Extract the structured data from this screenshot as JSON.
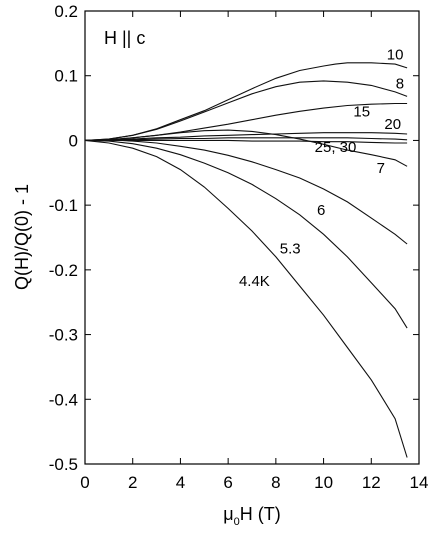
{
  "chart_data": {
    "type": "line",
    "xlabel": "μ₀H (T)",
    "xlabel_parts": {
      "main": "μ",
      "sub": "0",
      "rest": "H (T)"
    },
    "ylabel": "Q(H)/Q(0) - 1",
    "xlim": [
      0,
      14
    ],
    "ylim": [
      -0.5,
      0.2
    ],
    "xticks": [
      0,
      2,
      4,
      6,
      8,
      10,
      12,
      14
    ],
    "yticks": [
      -0.5,
      -0.4,
      -0.3,
      -0.2,
      -0.1,
      0,
      0.1,
      0.2
    ],
    "ytick_labels": [
      "-0.5",
      "-0.4",
      "-0.3",
      "-0.2",
      "-0.1",
      "0",
      "0.1",
      "0.2"
    ],
    "grid": false,
    "field_annotation": "H || c",
    "series": [
      {
        "name": "10",
        "label_x": 13.0,
        "label_y": 0.125,
        "x": [
          0,
          1,
          2,
          3,
          4,
          5,
          6,
          7,
          8,
          9,
          10,
          10.5,
          11,
          12,
          13,
          13.5
        ],
        "y": [
          0,
          0.002,
          0.008,
          0.018,
          0.032,
          0.046,
          0.063,
          0.08,
          0.096,
          0.108,
          0.115,
          0.118,
          0.12,
          0.12,
          0.118,
          0.112
        ]
      },
      {
        "name": "8",
        "label_x": 13.2,
        "label_y": 0.08,
        "x": [
          0,
          1,
          2,
          3,
          4,
          5,
          6,
          7,
          8,
          9,
          10,
          11,
          12,
          13,
          13.5
        ],
        "y": [
          0,
          0.002,
          0.008,
          0.017,
          0.03,
          0.044,
          0.058,
          0.072,
          0.083,
          0.09,
          0.092,
          0.09,
          0.085,
          0.075,
          0.068
        ]
      },
      {
        "name": "15",
        "label_x": 11.6,
        "label_y": 0.037,
        "x": [
          0,
          1,
          2,
          3,
          4,
          5,
          6,
          7,
          8,
          9,
          10,
          11,
          12,
          13,
          13.5
        ],
        "y": [
          0,
          0.001,
          0.004,
          0.008,
          0.013,
          0.019,
          0.025,
          0.032,
          0.039,
          0.045,
          0.05,
          0.054,
          0.056,
          0.057,
          0.057
        ]
      },
      {
        "name": "20",
        "label_x": 12.9,
        "label_y": 0.018,
        "x": [
          0,
          1,
          2,
          3,
          4,
          5,
          6,
          7,
          8,
          9,
          10,
          11,
          12,
          13,
          13.5
        ],
        "y": [
          0,
          0.001,
          0.002,
          0.004,
          0.005,
          0.007,
          0.008,
          0.009,
          0.01,
          0.011,
          0.012,
          0.012,
          0.012,
          0.011,
          0.01
        ]
      },
      {
        "name": "25",
        "x": [
          0,
          1,
          2,
          3,
          4,
          5,
          6,
          7,
          8,
          9,
          10,
          11,
          12,
          13,
          13.5
        ],
        "y": [
          0,
          0,
          0.001,
          0.002,
          0.003,
          0.003,
          0.004,
          0.004,
          0.004,
          0.004,
          0.004,
          0.004,
          0.003,
          0.002,
          0.001
        ]
      },
      {
        "name": "30",
        "label": "25, 30",
        "label_x": 10.5,
        "label_y": -0.018,
        "x": [
          0,
          1,
          2,
          3,
          4,
          5,
          6,
          7,
          8,
          9,
          10,
          11,
          12,
          13,
          13.5
        ],
        "y": [
          0,
          0,
          0,
          0,
          0,
          0,
          0,
          -0.001,
          -0.001,
          -0.001,
          -0.002,
          -0.002,
          -0.003,
          -0.004,
          -0.004
        ]
      },
      {
        "name": "7",
        "label_x": 12.4,
        "label_y": -0.05,
        "x": [
          0,
          1,
          2,
          3,
          4,
          5,
          6,
          7,
          8,
          9,
          10,
          11,
          12,
          13,
          13.5
        ],
        "y": [
          0,
          0.001,
          0.004,
          0.008,
          0.012,
          0.015,
          0.016,
          0.014,
          0.009,
          0.002,
          -0.006,
          -0.015,
          -0.022,
          -0.03,
          -0.04
        ]
      },
      {
        "name": "6",
        "label_x": 9.9,
        "label_y": -0.115,
        "x": [
          0,
          1,
          2,
          3,
          4,
          5,
          6,
          7,
          8,
          9,
          10,
          11,
          12,
          13,
          13.5
        ],
        "y": [
          0,
          0.001,
          -0.001,
          -0.004,
          -0.009,
          -0.015,
          -0.023,
          -0.033,
          -0.045,
          -0.058,
          -0.075,
          -0.095,
          -0.12,
          -0.145,
          -0.16
        ]
      },
      {
        "name": "5.3",
        "label_x": 8.6,
        "label_y": -0.175,
        "x": [
          0,
          1,
          2,
          3,
          4,
          5,
          6,
          7,
          8,
          9,
          10,
          11,
          12,
          13,
          13.5
        ],
        "y": [
          0,
          -0.001,
          -0.005,
          -0.012,
          -0.022,
          -0.035,
          -0.05,
          -0.068,
          -0.09,
          -0.115,
          -0.145,
          -0.18,
          -0.22,
          -0.26,
          -0.29
        ]
      },
      {
        "name": "4.4K",
        "label_x": 7.1,
        "label_y": -0.225,
        "x": [
          0,
          1,
          2,
          3,
          4,
          5,
          6,
          7,
          8,
          9,
          10,
          11,
          12,
          13,
          13.5
        ],
        "y": [
          0,
          -0.004,
          -0.012,
          -0.025,
          -0.045,
          -0.072,
          -0.105,
          -0.14,
          -0.18,
          -0.225,
          -0.27,
          -0.32,
          -0.37,
          -0.43,
          -0.49
        ]
      }
    ]
  }
}
